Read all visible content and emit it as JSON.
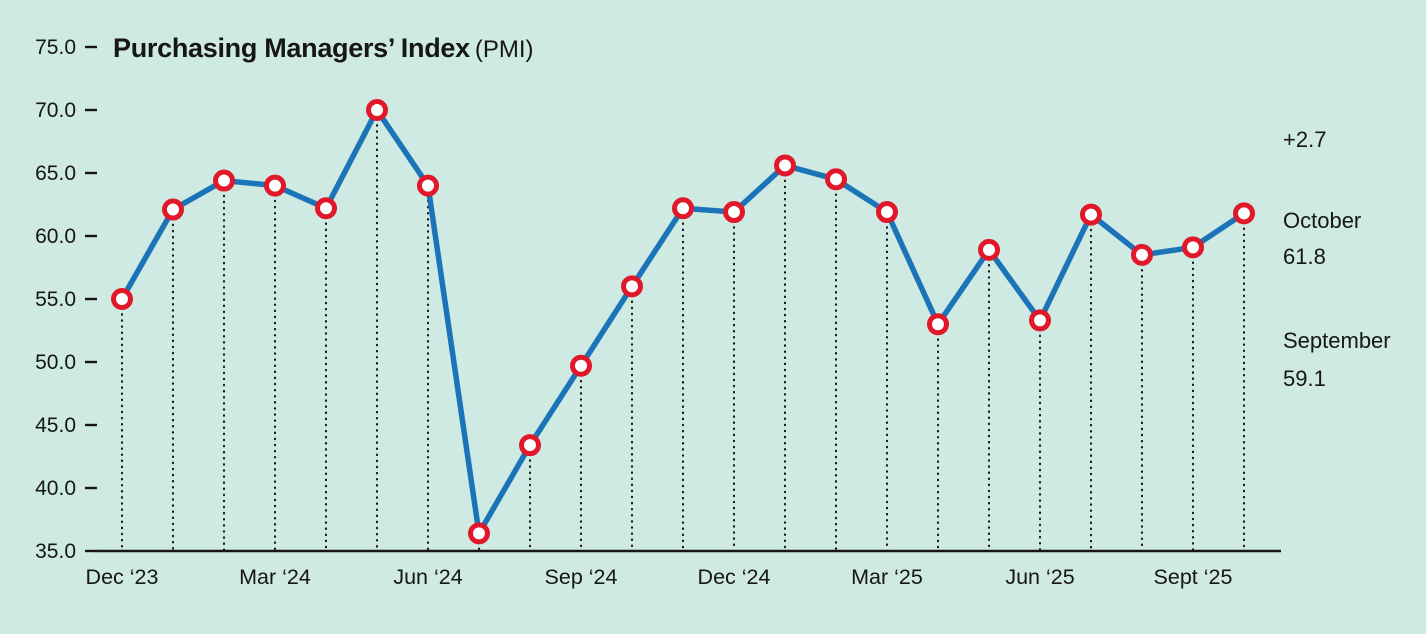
{
  "title": {
    "bold": "Purchasing Managers’ Index",
    "normal": "(PMI)"
  },
  "annotations": {
    "change": "+2.7",
    "october_label": "October",
    "october_value": "61.8",
    "september_label": "September",
    "september_value": "59.1"
  },
  "chart_data": {
    "type": "line",
    "title": "Purchasing Managers’ Index (PMI)",
    "xlabel": "",
    "ylabel": "PMI",
    "ylim": [
      35.0,
      75.0
    ],
    "y_ticks": [
      35.0,
      40.0,
      45.0,
      50.0,
      55.0,
      60.0,
      65.0,
      70.0,
      75.0
    ],
    "x": [
      "Dec 2023",
      "Jan 2024",
      "Feb 2024",
      "Mar 2024",
      "Apr 2024",
      "May 2024",
      "Jun 2024",
      "Jul 2024",
      "Aug 2024",
      "Sep 2024",
      "Oct 2024",
      "Nov 2024",
      "Dec 2024",
      "Jan 2025",
      "Feb 2025",
      "Mar 2025",
      "Apr 2025",
      "May 2025",
      "Jun 2025",
      "Jul 2025",
      "Aug 2025",
      "Sep 2025",
      "Oct 2025"
    ],
    "values": [
      55.0,
      62.1,
      64.4,
      64.0,
      62.2,
      70.0,
      64.0,
      36.4,
      43.4,
      49.7,
      56.0,
      62.2,
      61.9,
      65.6,
      64.5,
      61.9,
      53.0,
      58.9,
      53.3,
      61.7,
      58.5,
      59.1,
      61.8
    ],
    "x_tick_labels": [
      "Dec ‘23",
      "Mar ‘24",
      "Jun ‘24",
      "Sep ‘24",
      "Dec ‘24",
      "Mar ‘25",
      "Jun ‘25",
      "Sept ‘25"
    ],
    "x_tick_indices": [
      0,
      3,
      6,
      9,
      12,
      15,
      18,
      21
    ],
    "grid": "dotted-vertical-droplines",
    "legend": "none",
    "colors": {
      "background": "#cfe9e3",
      "line": "#1b74b8",
      "marker_stroke": "#e0182a",
      "marker_fill": "#ffffff",
      "text": "#161616",
      "axis": "#161616"
    }
  }
}
